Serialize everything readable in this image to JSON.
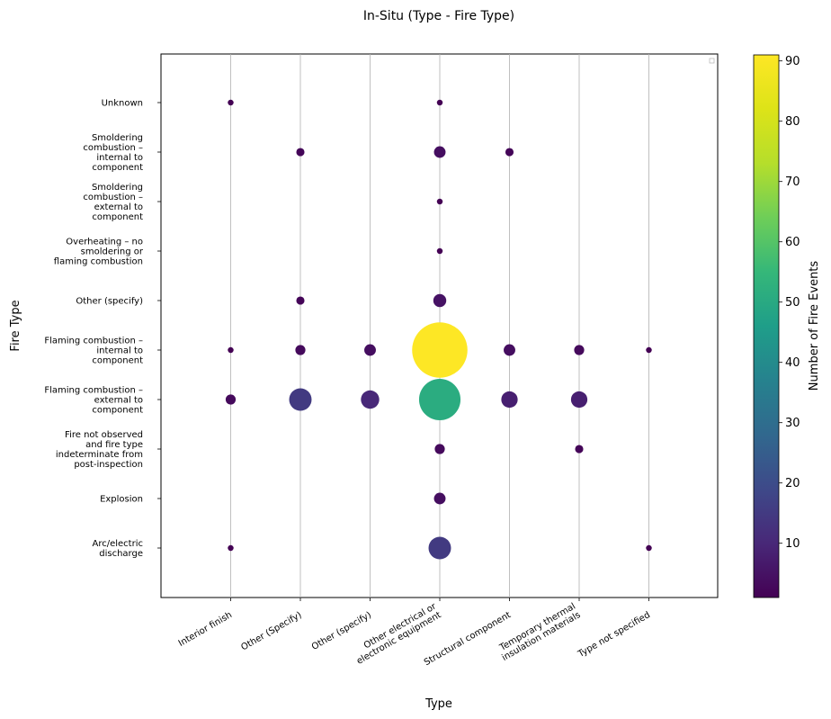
{
  "chart_data": {
    "type": "scatter",
    "title": "In-Situ (Type - Fire Type)",
    "xlabel": "Type",
    "ylabel": "Fire Type",
    "colorbar_label": "Number of Fire Events",
    "colorscale": "viridis",
    "color_range": [
      1,
      91
    ],
    "colorbar_ticks": [
      10,
      20,
      30,
      40,
      50,
      60,
      70,
      80,
      90
    ],
    "x_categories": [
      [
        "Interior finish"
      ],
      [
        "Other (Specify)"
      ],
      [
        "Other (specify)"
      ],
      [
        "Other electrical or",
        "electronic equipment"
      ],
      [
        "Structural component"
      ],
      [
        "Temporary thermal",
        "insulation materials"
      ],
      [
        "Type not specified"
      ]
    ],
    "y_categories": [
      [
        "Arc/electric",
        "discharge"
      ],
      [
        "Explosion"
      ],
      [
        "Fire not observed",
        "and fire type",
        "indeterminate from",
        "post-inspection"
      ],
      [
        "Flaming combustion –",
        "external to",
        "component"
      ],
      [
        "Flaming combustion –",
        "internal to",
        "component"
      ],
      [
        "Other (specify)"
      ],
      [
        "Overheating – no",
        "smoldering or",
        "flaming combustion"
      ],
      [
        "Smoldering",
        "combustion –",
        "external to",
        "component"
      ],
      [
        "Smoldering",
        "combustion –",
        "internal to",
        "component"
      ],
      [
        "Unknown"
      ]
    ],
    "points": [
      {
        "x": 0,
        "y": 9,
        "count": 1
      },
      {
        "x": 3,
        "y": 9,
        "count": 1
      },
      {
        "x": 1,
        "y": 8,
        "count": 2
      },
      {
        "x": 3,
        "y": 8,
        "count": 4
      },
      {
        "x": 4,
        "y": 8,
        "count": 2
      },
      {
        "x": 3,
        "y": 7,
        "count": 1
      },
      {
        "x": 3,
        "y": 6,
        "count": 1
      },
      {
        "x": 1,
        "y": 5,
        "count": 2
      },
      {
        "x": 3,
        "y": 5,
        "count": 5
      },
      {
        "x": 0,
        "y": 4,
        "count": 1
      },
      {
        "x": 1,
        "y": 4,
        "count": 3
      },
      {
        "x": 2,
        "y": 4,
        "count": 4
      },
      {
        "x": 3,
        "y": 4,
        "count": 91
      },
      {
        "x": 4,
        "y": 4,
        "count": 4
      },
      {
        "x": 5,
        "y": 4,
        "count": 3
      },
      {
        "x": 6,
        "y": 4,
        "count": 1
      },
      {
        "x": 0,
        "y": 3,
        "count": 3
      },
      {
        "x": 1,
        "y": 3,
        "count": 15
      },
      {
        "x": 2,
        "y": 3,
        "count": 10
      },
      {
        "x": 3,
        "y": 3,
        "count": 51
      },
      {
        "x": 4,
        "y": 3,
        "count": 8
      },
      {
        "x": 5,
        "y": 3,
        "count": 8
      },
      {
        "x": 3,
        "y": 2,
        "count": 3
      },
      {
        "x": 5,
        "y": 2,
        "count": 2
      },
      {
        "x": 3,
        "y": 1,
        "count": 4
      },
      {
        "x": 0,
        "y": 0,
        "count": 1
      },
      {
        "x": 3,
        "y": 0,
        "count": 15
      },
      {
        "x": 6,
        "y": 0,
        "count": 1
      }
    ],
    "grid": "vertical",
    "legend": "top-right (empty)"
  }
}
